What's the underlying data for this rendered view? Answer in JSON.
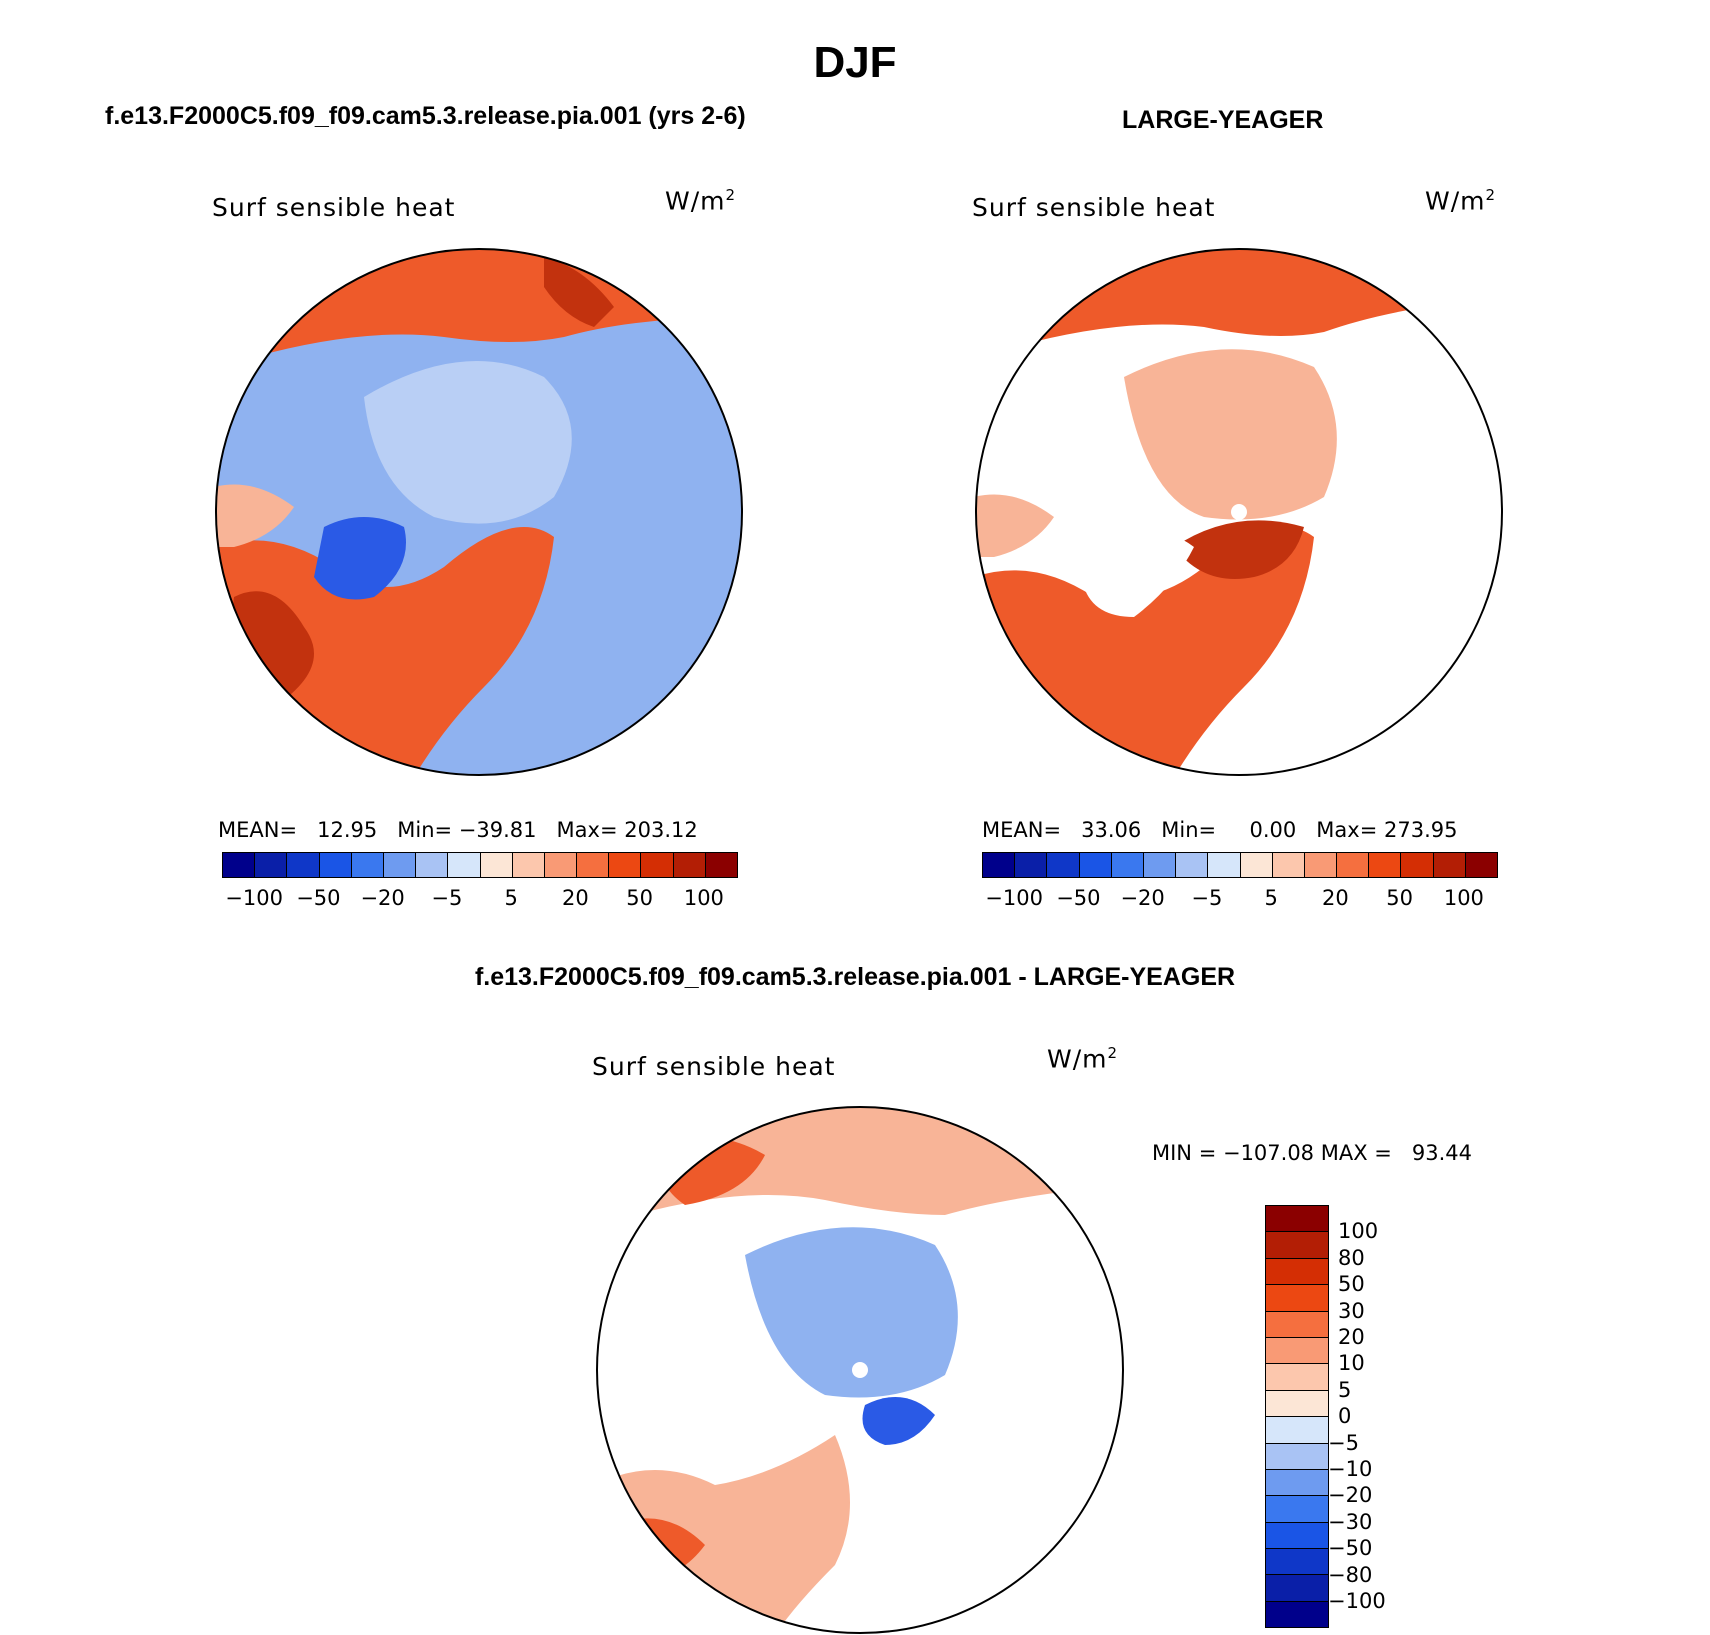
{
  "title": "DJF",
  "panels": [
    {
      "id": "model",
      "heading": "f.e13.F2000C5.f09_f09.cam5.3.release.pia.001 (yrs 2-6)",
      "variable": "Surf sensible heat",
      "units_base": "W/m",
      "units_exp": "2",
      "stats": {
        "mean_label": "MEAN=",
        "mean": "12.95",
        "min_label": "Min=",
        "min": "−39.81",
        "max_label": "Max=",
        "max": "203.12"
      }
    },
    {
      "id": "obs",
      "heading": "LARGE-YEAGER",
      "variable": "Surf sensible heat",
      "units_base": "W/m",
      "units_exp": "2",
      "stats": {
        "mean_label": "MEAN=",
        "mean": "33.06",
        "min_label": "Min=",
        "min": "0.00",
        "max_label": "Max=",
        "max": "273.95"
      }
    },
    {
      "id": "diff",
      "heading": "f.e13.F2000C5.f09_f09.cam5.3.release.pia.001 - LARGE-YEAGER",
      "variable": "Surf sensible heat",
      "units_base": "W/m",
      "units_exp": "2",
      "minmax": "MIN = −107.08 MAX =   93.44"
    }
  ],
  "colorbar_horizontal": {
    "colors": [
      "#00008b",
      "#0a1fa8",
      "#0f37c8",
      "#1a55e6",
      "#3a78ef",
      "#6e9bf0",
      "#a9c3f4",
      "#d6e6fa",
      "#fce6d6",
      "#fcc7ad",
      "#f99a75",
      "#f56f3f",
      "#ec4812",
      "#d42e04",
      "#b31e05",
      "#8b0000"
    ],
    "tick_labels": [
      "−100",
      "−50",
      "−20",
      "−5",
      "5",
      "20",
      "50",
      "100"
    ]
  },
  "colorbar_vertical": {
    "colors": [
      "#8b0000",
      "#b31e05",
      "#d42e04",
      "#ec4812",
      "#f56f3f",
      "#f99a75",
      "#fcc7ad",
      "#fce6d6",
      "#d6e6fa",
      "#a9c3f4",
      "#6e9bf0",
      "#3a78ef",
      "#1a55e6",
      "#0f37c8",
      "#0a1fa8",
      "#00008b"
    ],
    "tick_labels": [
      "100",
      "80",
      "50",
      "30",
      "20",
      "10",
      "5",
      "0",
      "−5",
      "−10",
      "−20",
      "−30",
      "−50",
      "−80",
      "−100"
    ]
  },
  "colors": {
    "ocean_warm": "#ee5a2a",
    "ocean_dark": "#c2320e",
    "ice_light": "#b9cff5",
    "ice_mid": "#8fb2f0",
    "blue_deep": "#2a5ae6",
    "pale_orange": "#f8b497",
    "land": "#ffffff"
  }
}
